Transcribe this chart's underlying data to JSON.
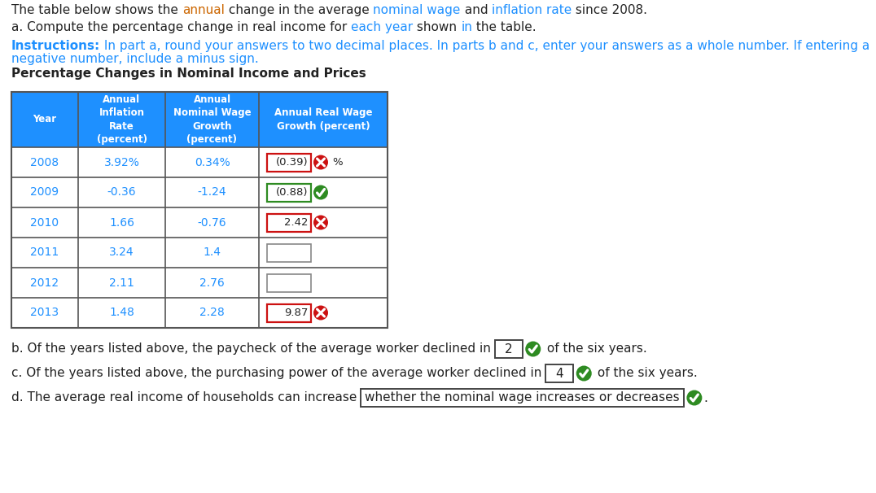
{
  "rows": [
    [
      "2008",
      "3.92%",
      "0.34%",
      "(0.39)",
      "x",
      "%"
    ],
    [
      "2009",
      "-0.36",
      "-1.24",
      "(0.88)",
      "check",
      ""
    ],
    [
      "2010",
      "1.66",
      "-0.76",
      "2.42",
      "x",
      ""
    ],
    [
      "2011",
      "3.24",
      "1.4",
      "",
      "none",
      ""
    ],
    [
      "2012",
      "2.11",
      "2.76",
      "",
      "none",
      ""
    ],
    [
      "2013",
      "1.48",
      "2.28",
      "9.87",
      "x",
      ""
    ]
  ],
  "header_bg": "#1E90FF",
  "text_color_blue": "#1E90FF",
  "text_color_dark": "#222222",
  "text_color_orange": "#CC6600",
  "green_check_color": "#2E8B22",
  "red_x_color": "#CC1111"
}
